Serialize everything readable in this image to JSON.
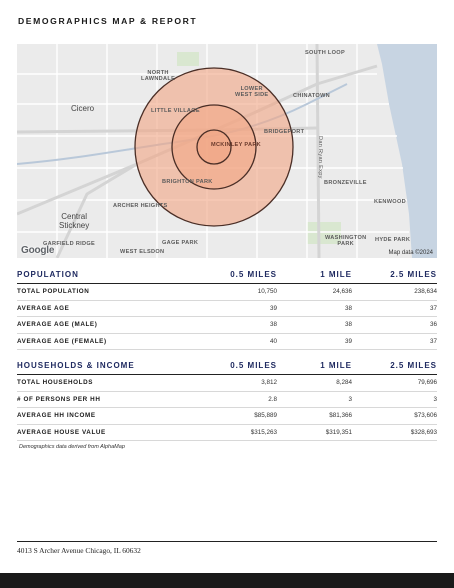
{
  "header": {
    "title": "DEMOGRAPHICS MAP & REPORT"
  },
  "map": {
    "labels": {
      "south_loop": "SOUTH LOOP",
      "north_lawndale": "NORTH\nLAWNDALE",
      "lower_west_side": "LOWER\nWEST SIDE",
      "chinatown": "CHINATOWN",
      "cicero": "Cicero",
      "little_village": "LITTLE VILLAGE",
      "bridgeport": "BRIDGEPORT",
      "mckinley_park": "MCKINLEY PARK",
      "brighton_park": "BRIGHTON PARK",
      "bronzeville": "BRONZEVILLE",
      "kenwood": "KENWOOD",
      "archer_heights": "ARCHER HEIGHTS",
      "central_stickney": "Central\nStickney",
      "garfield_ridge": "GARFIELD RIDGE",
      "gage_park": "GAGE PARK",
      "west_elsdon": "WEST ELSDON",
      "washington_park": "WASHINGTON\nPARK",
      "hyde_park": "HYDE PARK",
      "expressway": "Dan Ryan Expy"
    },
    "google_logo": "Google",
    "credit": "Map data ©2024",
    "colors": {
      "ring_fill": "#f2a583",
      "ring_stroke": "#4a2e26",
      "water": "#c7d4e2",
      "land": "#ebebeb"
    }
  },
  "population": {
    "headers": [
      "POPULATION",
      "0.5 MILES",
      "1 MILE",
      "2.5 MILES"
    ],
    "rows": [
      {
        "label": "TOTAL POPULATION",
        "values": [
          "10,750",
          "24,636",
          "238,634"
        ]
      },
      {
        "label": "AVERAGE AGE",
        "values": [
          "39",
          "38",
          "37"
        ]
      },
      {
        "label": "AVERAGE AGE (MALE)",
        "values": [
          "38",
          "38",
          "36"
        ]
      },
      {
        "label": "AVERAGE AGE (FEMALE)",
        "values": [
          "40",
          "39",
          "37"
        ]
      }
    ]
  },
  "households": {
    "headers": [
      "HOUSEHOLDS & INCOME",
      "0.5 MILES",
      "1 MILE",
      "2.5 MILES"
    ],
    "rows": [
      {
        "label": "TOTAL HOUSEHOLDS",
        "values": [
          "3,812",
          "8,284",
          "79,696"
        ]
      },
      {
        "label": "# OF PERSONS PER HH",
        "values": [
          "2.8",
          "3",
          "3"
        ]
      },
      {
        "label": "AVERAGE HH INCOME",
        "values": [
          "$85,889",
          "$81,366",
          "$73,606"
        ]
      },
      {
        "label": "AVERAGE HOUSE VALUE",
        "values": [
          "$315,263",
          "$319,351",
          "$328,693"
        ]
      }
    ]
  },
  "note": "Demographics data derived from AlphaMap",
  "footer": {
    "address": "4013 S Archer Avenue Chicago, IL 60632"
  }
}
